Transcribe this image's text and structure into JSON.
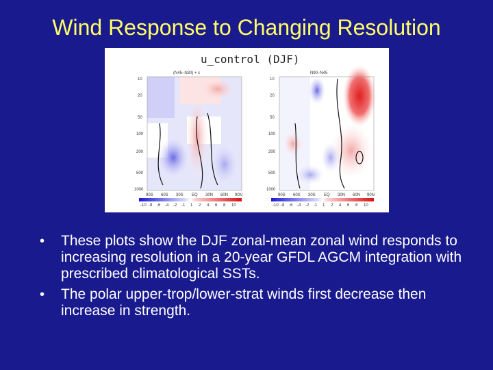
{
  "slide": {
    "title": "Wind Response to Changing Resolution",
    "bullets": [
      "These plots show the DJF zonal-mean zonal wind responds to increasing resolution in a 20-year GFDL AGCM integration with prescribed climatological SSTs.",
      "The polar upper-trop/lower-strat winds first decrease then increase in strength."
    ]
  },
  "figure": {
    "header": "u_control  (DJF)",
    "panels": [
      {
        "label": "(N45–N30) + c",
        "y_ticks": [
          "10",
          "20",
          "50",
          "100",
          "200",
          "500",
          "1000"
        ],
        "x_ticks": [
          "90S",
          "60S",
          "30S",
          "EQ",
          "30N",
          "60N",
          "90N"
        ]
      },
      {
        "label": "N90–N45",
        "y_ticks": [
          "10",
          "20",
          "50",
          "100",
          "200",
          "500",
          "1000"
        ],
        "x_ticks": [
          "90S",
          "60S",
          "30S",
          "EQ",
          "30N",
          "60N",
          "90N"
        ]
      }
    ],
    "colorbar_ticks": [
      "-10",
      "-8",
      "-6",
      "-4",
      "-2",
      "-1",
      "1",
      "2",
      "4",
      "6",
      "8",
      "10"
    ],
    "colors": {
      "strong_blue": "#2a2ad8",
      "light_blue": "#b8b8f4",
      "white": "#ffffff",
      "light_red": "#f8b8b8",
      "strong_red": "#e01818"
    }
  }
}
